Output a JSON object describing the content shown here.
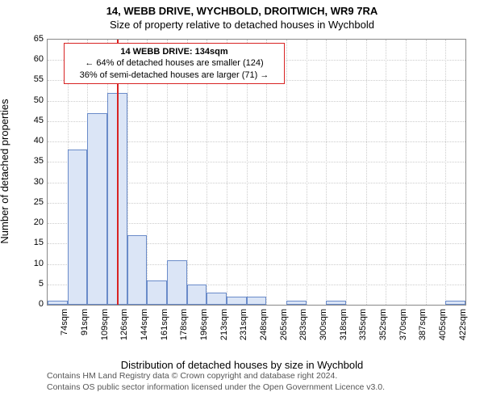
{
  "title": "14, WEBB DRIVE, WYCHBOLD, DROITWICH, WR9 7RA",
  "subtitle": "Size of property relative to detached houses in Wychbold",
  "chart": {
    "type": "histogram",
    "ylabel": "Number of detached properties",
    "xlabel": "Distribution of detached houses by size in Wychbold",
    "ylim": [
      0,
      65
    ],
    "ytick_step": 5,
    "xtick_labels": [
      "74sqm",
      "91sqm",
      "109sqm",
      "126sqm",
      "144sqm",
      "161sqm",
      "178sqm",
      "196sqm",
      "213sqm",
      "231sqm",
      "248sqm",
      "265sqm",
      "283sqm",
      "300sqm",
      "318sqm",
      "335sqm",
      "352sqm",
      "370sqm",
      "387sqm",
      "405sqm",
      "422sqm"
    ],
    "bar_values": [
      1,
      38,
      47,
      52,
      17,
      6,
      11,
      5,
      3,
      2,
      2,
      0,
      1,
      0,
      1,
      0,
      0,
      0,
      0,
      0,
      1
    ],
    "bar_fill": "#dbe5f6",
    "bar_stroke": "#6a8bc9",
    "grid_color": "#cccccc",
    "background_color": "#ffffff",
    "marker": {
      "position_bin": 3.5,
      "color": "#d82323",
      "callout_lines": [
        "14 WEBB DRIVE: 134sqm",
        "← 64% of detached houses are smaller (124)",
        "36% of semi-detached houses are larger (71) →"
      ]
    },
    "font_size_axis": 11,
    "font_size_label": 13,
    "font_size_title": 13
  },
  "footer": {
    "line1": "Contains HM Land Registry data © Crown copyright and database right 2024.",
    "line2": "Contains OS public sector information licensed under the Open Government Licence v3.0."
  }
}
